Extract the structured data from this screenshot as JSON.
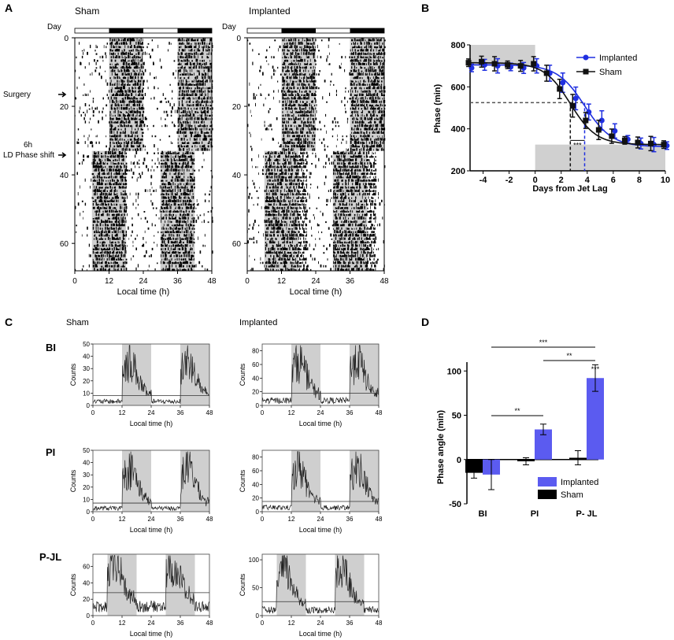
{
  "panel_labels": [
    "A",
    "B",
    "C",
    "D"
  ],
  "chart_data": [
    {
      "panel": "A",
      "type": "actogram",
      "day_label": "Day",
      "xlabel": "Local time (h)",
      "xticks": [
        0,
        12,
        24,
        36,
        48
      ],
      "yticks": [
        0,
        20,
        40,
        60
      ],
      "days": 68,
      "phase_shift_day": 33,
      "pre_dark_on_h": 12,
      "post_dark_on_h": 6,
      "annotations": [
        {
          "label": "Surgery",
          "day": 16
        },
        {
          "label": "6h",
          "day": 29
        },
        {
          "label": "LD Phase shift",
          "day": 33
        }
      ],
      "actograms": [
        {
          "name": "Sham",
          "post_activity_end_h": 18
        },
        {
          "name": "Implanted",
          "post_activity_end_h": 21
        }
      ]
    },
    {
      "panel": "B",
      "type": "line",
      "xlabel": "Days from Jet Lag",
      "ylabel": "Phase (min)",
      "xlim": [
        -5,
        10
      ],
      "ylim": [
        200,
        800
      ],
      "xticks": [
        -4,
        -2,
        0,
        2,
        4,
        6,
        8,
        10
      ],
      "yticks": [
        200,
        400,
        600,
        800
      ],
      "x": [
        -5,
        -4,
        -3,
        -2,
        -1,
        0,
        1,
        2,
        3,
        4,
        5,
        6,
        7,
        8,
        9,
        10
      ],
      "series": [
        {
          "name": "Implanted",
          "color": "#1f2fe0",
          "marker": "circle",
          "values": [
            690,
            705,
            700,
            695,
            690,
            700,
            665,
            620,
            545,
            480,
            440,
            390,
            350,
            330,
            325,
            320
          ]
        },
        {
          "name": "Sham",
          "color": "#111111",
          "marker": "square",
          "values": [
            715,
            720,
            710,
            705,
            700,
            710,
            665,
            590,
            510,
            440,
            395,
            365,
            345,
            335,
            330,
            325
          ]
        }
      ],
      "half_phase_line_y": 525,
      "half_phase_x": [
        2.7,
        3.8
      ],
      "significance": "***"
    },
    {
      "panel": "C",
      "type": "histogram-grid",
      "xlabel": "Local time (h)",
      "ylabel": "Counts",
      "xticks": [
        0,
        12,
        24,
        36,
        48
      ],
      "columns": [
        "Sham",
        "Implanted"
      ],
      "rows": [
        {
          "label": "BI",
          "dark_start_h": [
            12,
            36
          ],
          "sham_yticks": [
            0,
            10,
            20,
            30,
            40,
            50
          ],
          "sham_ymax": 50,
          "sham_thresh": 8,
          "impl_yticks": [
            0,
            20,
            40,
            60,
            80
          ],
          "impl_ymax": 90,
          "impl_thresh": 18
        },
        {
          "label": "PI",
          "dark_start_h": [
            12,
            36
          ],
          "sham_yticks": [
            0,
            10,
            20,
            30,
            40,
            50
          ],
          "sham_ymax": 50,
          "sham_thresh": 7,
          "impl_yticks": [
            0,
            20,
            40,
            60,
            80
          ],
          "impl_ymax": 90,
          "impl_thresh": 15
        },
        {
          "label": "P-JL",
          "dark_start_h": [
            6,
            30
          ],
          "sham_yticks": [
            0,
            20,
            40,
            60
          ],
          "sham_ymax": 75,
          "sham_thresh": 28,
          "impl_yticks": [
            0,
            50,
            100
          ],
          "impl_ymax": 110,
          "impl_thresh": 25
        }
      ]
    },
    {
      "panel": "D",
      "type": "bar",
      "ylabel": "Phase angle (min)",
      "ylim": [
        -50,
        110
      ],
      "yticks": [
        -50,
        0,
        50,
        100
      ],
      "categories": [
        "BI",
        "PI",
        "P- JL"
      ],
      "series": [
        {
          "name": "Sham",
          "color": "#000000",
          "values": [
            -15,
            -2,
            2
          ],
          "errors": [
            6,
            4,
            8
          ]
        },
        {
          "name": "Implanted",
          "color": "#5b5bf0",
          "values": [
            -17,
            34,
            92
          ],
          "errors": [
            17,
            6,
            15
          ]
        }
      ],
      "significance": [
        {
          "label": "***",
          "from": "BI",
          "to": "P- JL"
        },
        {
          "label": "**",
          "from": "PI",
          "to": "P- JL"
        },
        {
          "label": "**",
          "from": "BI",
          "to": "PI"
        },
        {
          "label": "***",
          "over": "P- JL"
        }
      ]
    }
  ]
}
